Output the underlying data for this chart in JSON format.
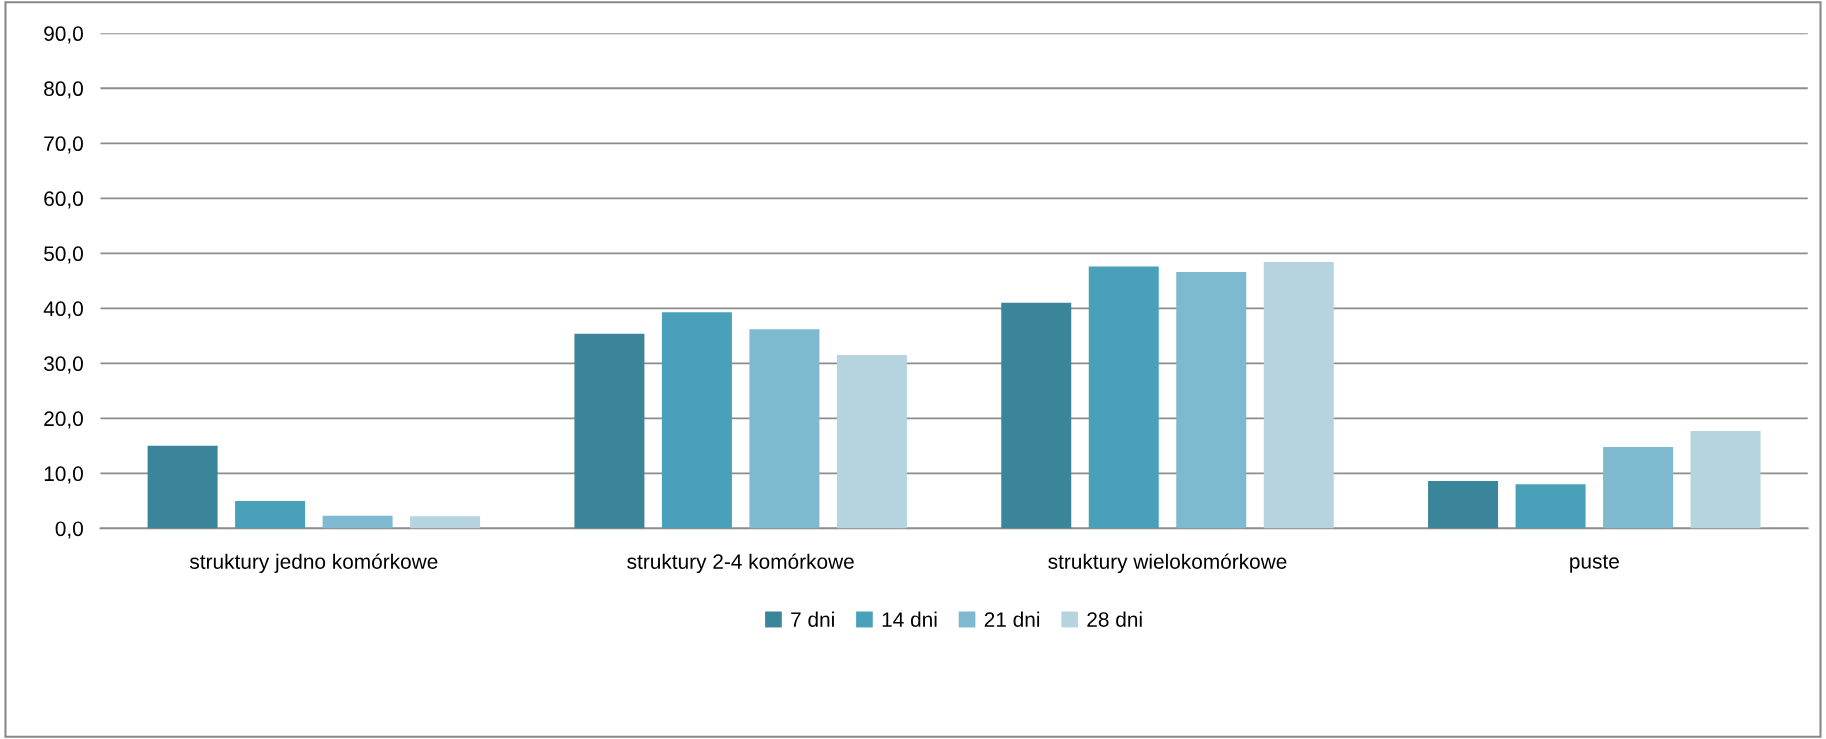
{
  "chart_data": {
    "type": "bar",
    "categories": [
      "struktury jedno komórkowe",
      "struktury 2-4 komórkowe",
      "struktury wielokomórkowe",
      "puste"
    ],
    "series": [
      {
        "name": "7 dni",
        "color": "#3a8599",
        "values": [
          15.0,
          35.4,
          41.0,
          8.6
        ]
      },
      {
        "name": "14 dni",
        "color": "#48a0b9",
        "values": [
          5.0,
          39.3,
          47.6,
          8.0
        ]
      },
      {
        "name": "21 dni",
        "color": "#7eb9cf",
        "values": [
          2.3,
          36.2,
          46.6,
          14.8
        ]
      },
      {
        "name": "28 dni",
        "color": "#b6d4df",
        "values": [
          2.2,
          31.5,
          48.4,
          17.7
        ]
      }
    ],
    "ylim": [
      0,
      90
    ],
    "yticks": [
      {
        "value": 0,
        "label": "0,0"
      },
      {
        "value": 10,
        "label": "10,0"
      },
      {
        "value": 20,
        "label": "20,0"
      },
      {
        "value": 30,
        "label": "30,0"
      },
      {
        "value": 40,
        "label": "40,0"
      },
      {
        "value": 50,
        "label": "50,0"
      },
      {
        "value": 60,
        "label": "60,0"
      },
      {
        "value": 70,
        "label": "70,0"
      },
      {
        "value": 80,
        "label": "80,0"
      },
      {
        "value": 90,
        "label": "90,0"
      }
    ],
    "grid": "y",
    "legend": "bottom"
  }
}
